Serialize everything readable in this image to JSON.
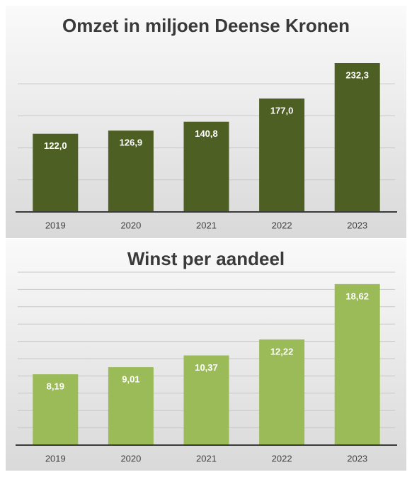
{
  "chart_data": [
    {
      "type": "bar",
      "title": "Omzet in miljoen Deense Kronen",
      "categories": [
        "2019",
        "2020",
        "2021",
        "2022",
        "2023"
      ],
      "values": [
        122.0,
        126.9,
        140.8,
        177.0,
        232.3
      ],
      "value_labels": [
        "122,0",
        "126,9",
        "140,8",
        "177,0",
        "232,3"
      ],
      "color": "#4e5f23",
      "ylim": [
        0,
        250
      ],
      "yticks": [
        0,
        50,
        100,
        150,
        200
      ],
      "grid": true
    },
    {
      "type": "bar",
      "title": "Winst per aandeel",
      "categories": [
        "2019",
        "2020",
        "2021",
        "2022",
        "2023"
      ],
      "values": [
        8.19,
        9.01,
        10.37,
        12.22,
        18.62
      ],
      "value_labels": [
        "8,19",
        "9,01",
        "10,37",
        "12,22",
        "18,62"
      ],
      "color": "#9bbb59",
      "ylim": [
        0,
        20
      ],
      "yticks": [
        0,
        2,
        4,
        6,
        8,
        10,
        12,
        14,
        16,
        18,
        20
      ],
      "grid": true
    }
  ]
}
